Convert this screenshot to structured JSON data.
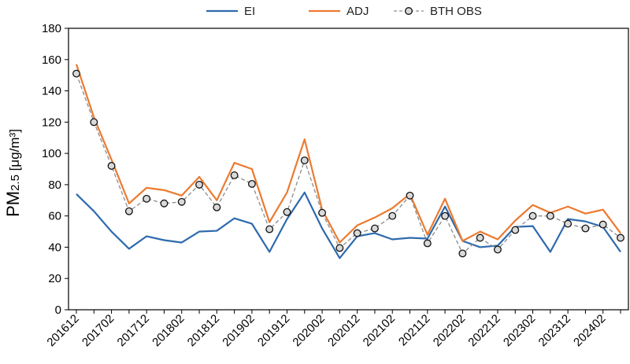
{
  "chart_data": {
    "type": "line",
    "title": "",
    "xlabel": "",
    "ylabel": {
      "main": "PM",
      "sub": "2.5",
      "unit": " [μg/m³]"
    },
    "ylim": [
      0,
      180
    ],
    "yticks": [
      0,
      20,
      40,
      60,
      80,
      100,
      120,
      140,
      160,
      180
    ],
    "grid": false,
    "legend_position": "top",
    "x": [
      "201612",
      "201701",
      "201702",
      "201703",
      "201712",
      "201801",
      "201802",
      "201803",
      "201812",
      "201901",
      "201902",
      "201903",
      "201912",
      "202001",
      "202002",
      "202003",
      "202012",
      "202101",
      "202102",
      "202103",
      "202112",
      "202201",
      "202202",
      "202203",
      "202212",
      "202301",
      "202302",
      "202303",
      "202312",
      "202401",
      "202402",
      "202403"
    ],
    "xtick_labels": [
      "201612",
      "201702",
      "201712",
      "201802",
      "201812",
      "201902",
      "201912",
      "202002",
      "202012",
      "202102",
      "202112",
      "202202",
      "202212",
      "202302",
      "202312",
      "202402"
    ],
    "series": [
      {
        "name": "EI",
        "color": "#2e6aad",
        "dashed": false,
        "marker": false,
        "values": [
          74,
          63,
          50,
          39,
          47,
          44.5,
          43,
          50,
          50.5,
          58.5,
          55,
          37,
          58,
          75,
          52,
          33,
          47,
          49,
          45,
          46,
          45.5,
          66,
          44,
          40,
          41,
          53,
          53.5,
          37,
          58,
          56.5,
          53,
          37
        ]
      },
      {
        "name": "ADJ",
        "color": "#ec7a30",
        "dashed": false,
        "marker": false,
        "values": [
          157,
          123,
          96,
          68,
          78,
          76.5,
          73,
          85,
          70,
          94,
          90,
          56,
          75,
          109,
          64,
          43,
          54,
          59,
          65,
          74,
          48,
          71,
          44,
          50,
          45,
          57,
          67,
          62,
          66,
          61.5,
          64,
          49
        ]
      },
      {
        "name": "BTH OBS",
        "color": "#8c8c8c",
        "dashed": true,
        "marker": true,
        "values": [
          151,
          120,
          92,
          63,
          71,
          68,
          69,
          80,
          65.5,
          86,
          80.5,
          51.5,
          62.5,
          95.5,
          62,
          39.5,
          49,
          52,
          60,
          73,
          42.5,
          60,
          36,
          46,
          38.5,
          51,
          60,
          60,
          55,
          52,
          54.5,
          46
        ]
      }
    ]
  }
}
